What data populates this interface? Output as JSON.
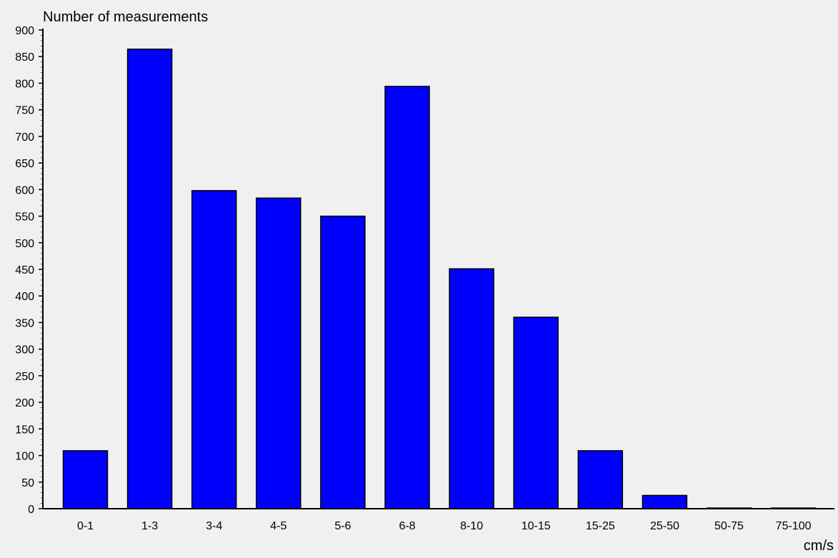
{
  "chart_data": {
    "type": "bar",
    "ylabel": "Number of measurements",
    "xlabel": "cm/s",
    "categories": [
      "0-1",
      "1-3",
      "3-4",
      "4-5",
      "5-6",
      "6-8",
      "8-10",
      "10-15",
      "15-25",
      "25-50",
      "50-75",
      "75-100"
    ],
    "values": [
      109,
      864,
      598,
      584,
      550,
      794,
      451,
      360,
      109,
      25,
      1,
      1
    ],
    "ylim": [
      0,
      900
    ],
    "yticks": [
      0,
      50,
      100,
      150,
      200,
      250,
      300,
      350,
      400,
      450,
      500,
      550,
      600,
      650,
      700,
      750,
      800,
      850,
      900
    ],
    "ytick_labels": [
      "0",
      "50",
      "100",
      "150",
      "200",
      "250",
      "300",
      "350",
      "400",
      "450",
      "500",
      "550",
      "600",
      "650",
      "700",
      "750",
      "800",
      "850",
      "900"
    ],
    "minor_tick_step": 10,
    "grid": false,
    "legend": "none",
    "colors": {
      "bar_fill": "#0000ff",
      "bar_stroke": "#000000",
      "background": "#f0f0f0",
      "axis": "#000000"
    }
  }
}
